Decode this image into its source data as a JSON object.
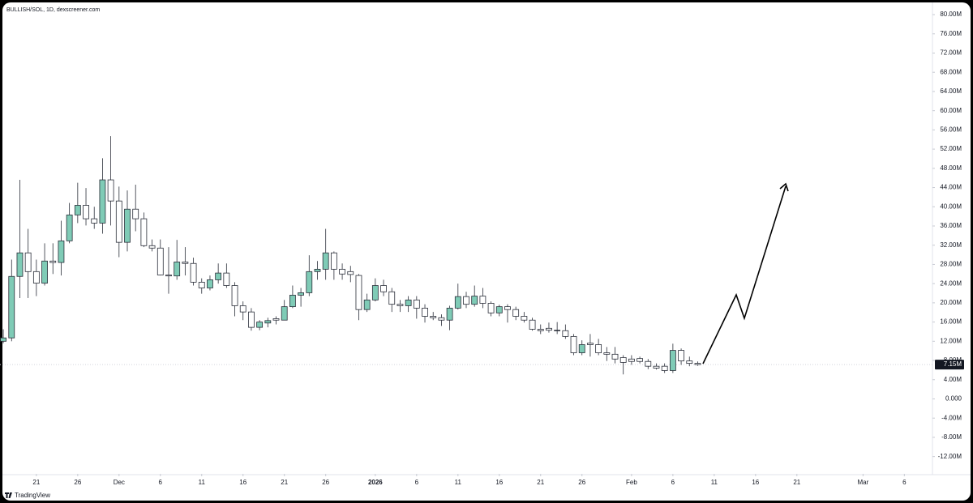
{
  "chart_data": {
    "type": "candlestick",
    "title": "BULLISH/SOL, 1D, dexscreener.com",
    "watermark": "TradingView",
    "x": [
      "11-17",
      "11-18",
      "11-19",
      "11-20",
      "11-21",
      "11-22",
      "11-23",
      "11-24",
      "11-25",
      "11-26",
      "11-27",
      "11-28",
      "11-29",
      "11-30",
      "12-01",
      "12-02",
      "12-03",
      "12-04",
      "12-05",
      "12-06",
      "12-07",
      "12-08",
      "12-09",
      "12-10",
      "12-11",
      "12-12",
      "12-13",
      "12-14",
      "12-15",
      "12-16",
      "12-17",
      "12-18",
      "12-19",
      "12-20",
      "12-21",
      "12-22",
      "12-23",
      "12-24",
      "12-25",
      "12-26",
      "12-27",
      "12-28",
      "12-29",
      "12-30",
      "12-31",
      "01-01",
      "01-02",
      "01-03",
      "01-04",
      "01-05",
      "01-06",
      "01-07",
      "01-08",
      "01-09",
      "01-10",
      "01-11",
      "01-12",
      "01-13",
      "01-14",
      "01-15",
      "01-16",
      "01-17",
      "01-18",
      "01-19",
      "01-20",
      "01-21",
      "01-22",
      "01-23",
      "01-24",
      "01-25",
      "01-26",
      "01-27",
      "01-28",
      "01-29",
      "01-30",
      "01-31",
      "02-01",
      "02-02",
      "02-03",
      "02-04",
      "02-05",
      "02-06",
      "02-07",
      "02-08",
      "02-09"
    ],
    "open": [
      12.0,
      12.7,
      25.5,
      30.4,
      26.5,
      24.1,
      28.7,
      28.4,
      32.9,
      38.3,
      40.3,
      37.5,
      36.6,
      45.6,
      41.2,
      32.6,
      39.5,
      37.5,
      31.9,
      31.4,
      25.8,
      25.6,
      28.5,
      28.2,
      24.3,
      23.1,
      24.8,
      26.2,
      23.6,
      19.4,
      18.1,
      14.9,
      15.8,
      16.7,
      16.4,
      19.2,
      21.6,
      22.1,
      26.5,
      27.0,
      30.4,
      27.0,
      26.5,
      25.7,
      18.6,
      20.6,
      23.6,
      22.3,
      19.7,
      19.4,
      20.6,
      18.9,
      17.2,
      16.9,
      16.4,
      18.9,
      21.3,
      19.7,
      21.4,
      19.9,
      17.9,
      19.2,
      18.6,
      17.2,
      16.4,
      14.5,
      14.7,
      14.3,
      14.2,
      13.0,
      9.6,
      11.6,
      11.3,
      9.6,
      9.3,
      8.6,
      8.3,
      8.4,
      7.8,
      6.8,
      6.8,
      5.9,
      10.1,
      7.9,
      7.4
    ],
    "high": [
      14.5,
      29,
      45.6,
      35.4,
      29,
      32.4,
      32.4,
      37.1,
      40.8,
      45,
      43.9,
      40,
      50.1,
      54.7,
      44.2,
      43.4,
      44.6,
      38.8,
      33.2,
      33.2,
      31.6,
      33.1,
      31.6,
      29.4,
      25.1,
      25.7,
      28.2,
      28.2,
      24.3,
      20.3,
      18.9,
      16.4,
      16.9,
      17.2,
      20.6,
      23.6,
      23.1,
      29.9,
      28.7,
      35.4,
      30.7,
      28.2,
      27.7,
      26,
      21.9,
      25.1,
      24.8,
      23.1,
      20.6,
      21.4,
      21.4,
      19.7,
      18.1,
      17.6,
      19.4,
      24,
      22.3,
      23.6,
      23.1,
      20.3,
      19.6,
      19.7,
      19.2,
      18.1,
      16.9,
      15.5,
      15.9,
      16,
      15.5,
      13.5,
      12.2,
      13.5,
      12.5,
      10.8,
      10.8,
      9.1,
      9.1,
      8.8,
      8.3,
      7.4,
      7.4,
      11.5,
      10.5,
      8.8,
      7.8
    ],
    "low": [
      11.6,
      12.0,
      21,
      21,
      21.4,
      23.6,
      26,
      25.7,
      32.4,
      36.6,
      36.1,
      35.4,
      34.4,
      36.1,
      29.5,
      30.7,
      34.9,
      31.6,
      30.7,
      25.7,
      21.9,
      24.8,
      25.7,
      23.6,
      21.9,
      22.6,
      24,
      23.1,
      17.2,
      16.4,
      14.2,
      14.3,
      14.9,
      15.5,
      16.4,
      18.9,
      19.2,
      21.4,
      24.8,
      24.8,
      24.8,
      24.8,
      24.3,
      16.4,
      18.1,
      20.3,
      21.4,
      18.1,
      18.1,
      18.1,
      16.7,
      15.9,
      16.4,
      15.2,
      14.3,
      18.6,
      18.9,
      19.2,
      18.9,
      17.2,
      17.2,
      15.9,
      16.4,
      15.9,
      14.2,
      13.5,
      13.8,
      13.5,
      12.5,
      9.1,
      9.1,
      8.8,
      9.1,
      7.9,
      7.4,
      5.1,
      7.1,
      7.4,
      6.2,
      6.1,
      5.4,
      5.4,
      7.1,
      6.8,
      6.9
    ],
    "close": [
      12.7,
      25.5,
      30.4,
      26.5,
      24.1,
      28.7,
      28.4,
      32.9,
      38.3,
      40.3,
      37.5,
      36.6,
      45.6,
      41.2,
      32.6,
      39.5,
      37.5,
      31.9,
      31.4,
      25.8,
      25.6,
      28.5,
      28.2,
      24.3,
      23.1,
      24.8,
      26.2,
      23.6,
      19.4,
      18.1,
      14.9,
      16.0,
      16.3,
      16.4,
      19.2,
      21.6,
      22.1,
      26.5,
      27.0,
      30.4,
      27.0,
      26.0,
      25.9,
      18.6,
      20.6,
      23.6,
      22.3,
      19.7,
      19.4,
      20.6,
      18.9,
      17.2,
      16.9,
      16.4,
      18.9,
      21.3,
      19.7,
      21.4,
      19.9,
      17.9,
      19.2,
      18.6,
      17.2,
      16.4,
      14.5,
      14.2,
      14.3,
      14.2,
      13.0,
      9.6,
      11.3,
      11.3,
      9.6,
      9.3,
      8.3,
      7.6,
      7.8,
      7.8,
      6.8,
      6.4,
      5.9,
      10.1,
      7.9,
      7.4,
      7.15
    ],
    "up_color": "#7fcbb6",
    "down_color": "#ffffff",
    "outline_color": "#2a2e39",
    "xlim": [
      "11-16",
      "03-09"
    ],
    "xticks": [
      {
        "value": "11-21",
        "label": "21"
      },
      {
        "value": "11-26",
        "label": "26"
      },
      {
        "value": "12-01",
        "label": "Dec"
      },
      {
        "value": "12-06",
        "label": "6"
      },
      {
        "value": "12-11",
        "label": "11"
      },
      {
        "value": "12-16",
        "label": "16"
      },
      {
        "value": "12-21",
        "label": "21"
      },
      {
        "value": "12-26",
        "label": "26"
      },
      {
        "value": "01-01",
        "label": "2026"
      },
      {
        "value": "01-06",
        "label": "6"
      },
      {
        "value": "01-11",
        "label": "11"
      },
      {
        "value": "01-16",
        "label": "16"
      },
      {
        "value": "01-21",
        "label": "21"
      },
      {
        "value": "01-26",
        "label": "26"
      },
      {
        "value": "02-01",
        "label": "Feb"
      },
      {
        "value": "02-06",
        "label": "6"
      },
      {
        "value": "02-11",
        "label": "11"
      },
      {
        "value": "02-16",
        "label": "16"
      },
      {
        "value": "02-21",
        "label": "21"
      },
      {
        "value": "03-01",
        "label": "Mar"
      },
      {
        "value": "03-06",
        "label": "6"
      }
    ],
    "ylim": [
      -15.6,
      82.2
    ],
    "yticks": [
      {
        "value": 80,
        "label": "80.00M"
      },
      {
        "value": 76,
        "label": "76.00M"
      },
      {
        "value": 72,
        "label": "72.00M"
      },
      {
        "value": 68,
        "label": "68.00M"
      },
      {
        "value": 64,
        "label": "64.00M"
      },
      {
        "value": 60,
        "label": "60.00M"
      },
      {
        "value": 56,
        "label": "56.00M"
      },
      {
        "value": 52,
        "label": "52.00M"
      },
      {
        "value": 48,
        "label": "48.00M"
      },
      {
        "value": 44,
        "label": "44.00M"
      },
      {
        "value": 40,
        "label": "40.00M"
      },
      {
        "value": 36,
        "label": "36.00M"
      },
      {
        "value": 32,
        "label": "32.00M"
      },
      {
        "value": 28,
        "label": "28.00M"
      },
      {
        "value": 24,
        "label": "24.00M"
      },
      {
        "value": 20,
        "label": "20.00M"
      },
      {
        "value": 16,
        "label": "16.00M"
      },
      {
        "value": 12,
        "label": "12.00M"
      },
      {
        "value": 8,
        "label": "8.00M"
      },
      {
        "value": 4,
        "label": "4.00M"
      },
      {
        "value": 0,
        "label": "0.000"
      },
      {
        "value": -4,
        "label": "-4.00M"
      },
      {
        "value": -8,
        "label": "-8.00M"
      },
      {
        "value": -12,
        "label": "-12.00M"
      }
    ],
    "last_price": {
      "value": 7.15,
      "label": "7.15M"
    },
    "grid": false
  }
}
